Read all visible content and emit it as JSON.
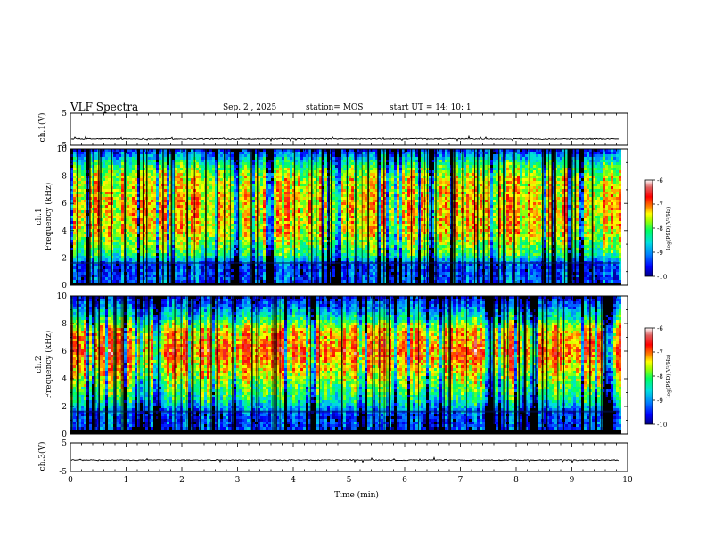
{
  "header": {
    "title": "VLF Spectra",
    "date": "Sep. 2 , 2025",
    "station": "station= MOS",
    "start": "start UT = 14: 10: 1"
  },
  "panels": {
    "ch1_wave": {
      "ylabel": "ch.1(V)"
    },
    "ch1_spec": {
      "ylabel": "ch.1\nFrequency (kHz)"
    },
    "ch2_spec": {
      "ylabel": "ch.2\nFrequency (kHz)"
    },
    "ch3_wave": {
      "ylabel": "ch.3(V)"
    }
  },
  "colorbar": {
    "label": "log(PSD)(V²/Hz)",
    "ticks": [
      "-6",
      "-7",
      "-8",
      "-9",
      "-10"
    ],
    "colors": [
      "#000080",
      "#0000ff",
      "#0080ff",
      "#00e0e0",
      "#00ff60",
      "#a0ff00",
      "#ffff00",
      "#ff8000",
      "#ff0000",
      "#e06060",
      "#ffffff"
    ]
  },
  "chart_data": [
    {
      "type": "line",
      "title": "VLF Spectra",
      "ylabel": "ch.1(V)",
      "ylim": [
        -5,
        5
      ],
      "yticks": [
        "5",
        "-5"
      ],
      "xlim": [
        0,
        10
      ],
      "note": "waveform near -3 V throughout 0–9.8 min"
    },
    {
      "type": "heatmap",
      "ylabel": "ch.1 Frequency (kHz)",
      "ylim": [
        0,
        10
      ],
      "yticks": [
        "0",
        "2",
        "4",
        "6",
        "8",
        "10"
      ],
      "xlim": [
        0,
        9.85
      ],
      "colorscale": [
        -10,
        -6
      ],
      "profile": [
        {
          "f": 0.0,
          "level": -10
        },
        {
          "f": 0.3,
          "level": -9.3
        },
        {
          "f": 1.5,
          "level": -9.4
        },
        {
          "f": 2.2,
          "level": -8.2
        },
        {
          "f": 4.0,
          "level": -7.4
        },
        {
          "f": 6.0,
          "level": -7.3
        },
        {
          "f": 8.0,
          "level": -7.6
        },
        {
          "f": 9.0,
          "level": -8.3
        },
        {
          "f": 10.0,
          "level": -9.6
        }
      ]
    },
    {
      "type": "heatmap",
      "ylabel": "ch.2 Frequency (kHz)",
      "ylim": [
        0,
        10
      ],
      "yticks": [
        "0",
        "2",
        "4",
        "6",
        "8",
        "10"
      ],
      "xlim": [
        0,
        9.85
      ],
      "colorscale": [
        -10,
        -6
      ],
      "profile": [
        {
          "f": 0.0,
          "level": -10
        },
        {
          "f": 0.3,
          "level": -9.4
        },
        {
          "f": 1.5,
          "level": -9.3
        },
        {
          "f": 2.5,
          "level": -8.3
        },
        {
          "f": 4.5,
          "level": -7.4
        },
        {
          "f": 6.0,
          "level": -6.9
        },
        {
          "f": 7.5,
          "level": -7.3
        },
        {
          "f": 8.5,
          "level": -8.4
        },
        {
          "f": 10.0,
          "level": -9.8
        }
      ]
    },
    {
      "type": "line",
      "ylabel": "ch.3(V)",
      "ylim": [
        -5,
        5
      ],
      "yticks": [
        "5",
        "-5"
      ],
      "xlim": [
        0,
        10
      ],
      "xlabel": "Time (min)",
      "xticks": [
        "0",
        "1",
        "2",
        "3",
        "4",
        "5",
        "6",
        "7",
        "8",
        "9",
        "10"
      ],
      "note": "waveform near -1 V throughout 0–9.8 min"
    }
  ]
}
